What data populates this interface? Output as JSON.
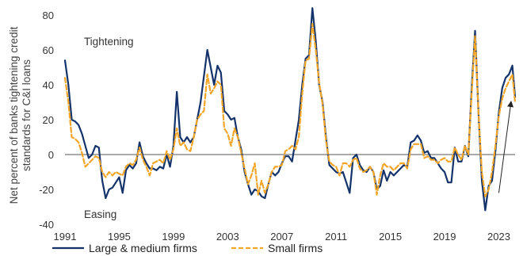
{
  "chart_data": {
    "type": "line",
    "title": "",
    "xlabel": "",
    "ylabel": "Net percent of banks tightening credit standards for C&I loans",
    "ylabel_lines": [
      "Net percent of banks tightening credit",
      "standards for C&I loans"
    ],
    "xlim": [
      1991,
      2024.2
    ],
    "ylim": [
      -40,
      85
    ],
    "x_ticks": [
      1991,
      1995,
      1999,
      2003,
      2007,
      2011,
      2015,
      2019,
      2023
    ],
    "y_ticks": [
      -40,
      -20,
      0,
      20,
      40,
      60,
      80
    ],
    "grid": false,
    "zero_line": true,
    "legend_position": "bottom",
    "annotations": [
      {
        "text": "Tightening",
        "x": 1992.4,
        "y": 65
      },
      {
        "text": "Easing",
        "x": 1992.4,
        "y": -34
      },
      {
        "type": "arrow",
        "from": [
          2023.0,
          -22
        ],
        "to": [
          2023.9,
          30
        ]
      }
    ],
    "series": [
      {
        "name": "Large & medium firms",
        "color": "#14336b",
        "style": "solid",
        "points": [
          [
            1991.0,
            54
          ],
          [
            1991.25,
            40
          ],
          [
            1991.5,
            20
          ],
          [
            1991.75,
            19
          ],
          [
            1992.0,
            17
          ],
          [
            1992.25,
            12
          ],
          [
            1992.5,
            5
          ],
          [
            1992.75,
            -2
          ],
          [
            1993.0,
            0
          ],
          [
            1993.25,
            5
          ],
          [
            1993.5,
            4
          ],
          [
            1993.75,
            -15
          ],
          [
            1994.0,
            -25
          ],
          [
            1994.25,
            -20
          ],
          [
            1994.5,
            -19
          ],
          [
            1994.75,
            -16
          ],
          [
            1995.0,
            -13
          ],
          [
            1995.25,
            -22
          ],
          [
            1995.5,
            -9
          ],
          [
            1995.75,
            -6
          ],
          [
            1996.0,
            -8
          ],
          [
            1996.25,
            -5
          ],
          [
            1996.5,
            7
          ],
          [
            1996.75,
            -1
          ],
          [
            1997.0,
            -5
          ],
          [
            1997.25,
            -8
          ],
          [
            1997.5,
            -8
          ],
          [
            1997.75,
            -9
          ],
          [
            1998.0,
            -7
          ],
          [
            1998.25,
            -8
          ],
          [
            1998.5,
            0
          ],
          [
            1998.75,
            -7
          ],
          [
            1999.0,
            5
          ],
          [
            1999.25,
            36
          ],
          [
            1999.5,
            10
          ],
          [
            1999.75,
            7
          ],
          [
            2000.0,
            10
          ],
          [
            2000.25,
            7
          ],
          [
            2000.5,
            10
          ],
          [
            2000.75,
            20
          ],
          [
            2001.0,
            30
          ],
          [
            2001.25,
            45
          ],
          [
            2001.5,
            60
          ],
          [
            2001.75,
            50
          ],
          [
            2002.0,
            40
          ],
          [
            2002.25,
            51
          ],
          [
            2002.5,
            47
          ],
          [
            2002.75,
            25
          ],
          [
            2003.0,
            23
          ],
          [
            2003.25,
            20
          ],
          [
            2003.5,
            21
          ],
          [
            2003.75,
            10
          ],
          [
            2004.0,
            3
          ],
          [
            2004.25,
            -10
          ],
          [
            2004.5,
            -17
          ],
          [
            2004.75,
            -23
          ],
          [
            2005.0,
            -20
          ],
          [
            2005.25,
            -21
          ],
          [
            2005.5,
            -24
          ],
          [
            2005.75,
            -25
          ],
          [
            2006.0,
            -17
          ],
          [
            2006.25,
            -10
          ],
          [
            2006.5,
            -12
          ],
          [
            2006.75,
            -10
          ],
          [
            2007.0,
            -5
          ],
          [
            2007.25,
            -1
          ],
          [
            2007.5,
            -1
          ],
          [
            2007.75,
            -4
          ],
          [
            2008.0,
            8
          ],
          [
            2008.25,
            20
          ],
          [
            2008.5,
            40
          ],
          [
            2008.75,
            55
          ],
          [
            2009.0,
            57
          ],
          [
            2009.25,
            84
          ],
          [
            2009.5,
            65
          ],
          [
            2009.75,
            40
          ],
          [
            2010.0,
            30
          ],
          [
            2010.25,
            10
          ],
          [
            2010.5,
            -6
          ],
          [
            2010.75,
            -8
          ],
          [
            2011.0,
            -10
          ],
          [
            2011.25,
            -11
          ],
          [
            2011.5,
            -10
          ],
          [
            2011.75,
            -16
          ],
          [
            2012.0,
            -22
          ],
          [
            2012.25,
            -2
          ],
          [
            2012.5,
            0
          ],
          [
            2012.75,
            -6
          ],
          [
            2013.0,
            -9
          ],
          [
            2013.25,
            -10
          ],
          [
            2013.5,
            -7
          ],
          [
            2013.75,
            -10
          ],
          [
            2014.0,
            -20
          ],
          [
            2014.25,
            -18
          ],
          [
            2014.5,
            -9
          ],
          [
            2014.75,
            -15
          ],
          [
            2015.0,
            -10
          ],
          [
            2015.25,
            -12
          ],
          [
            2015.5,
            -10
          ],
          [
            2015.75,
            -8
          ],
          [
            2016.0,
            -6
          ],
          [
            2016.25,
            -7
          ],
          [
            2016.5,
            7
          ],
          [
            2016.75,
            8
          ],
          [
            2017.0,
            11
          ],
          [
            2017.25,
            8
          ],
          [
            2017.5,
            1
          ],
          [
            2017.75,
            2
          ],
          [
            2018.0,
            -2
          ],
          [
            2018.25,
            -2
          ],
          [
            2018.5,
            -5
          ],
          [
            2018.75,
            -8
          ],
          [
            2019.0,
            -10
          ],
          [
            2019.25,
            -16
          ],
          [
            2019.5,
            -16
          ],
          [
            2019.75,
            4
          ],
          [
            2020.0,
            -4
          ],
          [
            2020.25,
            -4
          ],
          [
            2020.5,
            5
          ],
          [
            2020.75,
            -1
          ],
          [
            2021.0,
            38
          ],
          [
            2021.25,
            71
          ],
          [
            2021.5,
            24
          ],
          [
            2021.75,
            -15
          ],
          [
            2022.0,
            -32
          ],
          [
            2022.25,
            -18
          ],
          [
            2022.5,
            -15
          ],
          [
            2022.75,
            2
          ],
          [
            2023.0,
            24
          ],
          [
            2023.25,
            38
          ],
          [
            2023.5,
            44
          ],
          [
            2023.75,
            46
          ],
          [
            2024.0,
            51
          ],
          [
            2024.2,
            33
          ]
        ]
      },
      {
        "name": "Small firms",
        "color": "#f2a526",
        "style": "dashed",
        "points": [
          [
            1991.0,
            44
          ],
          [
            1991.25,
            30
          ],
          [
            1991.5,
            10
          ],
          [
            1991.75,
            9
          ],
          [
            1992.0,
            7
          ],
          [
            1992.25,
            1
          ],
          [
            1992.5,
            -7
          ],
          [
            1992.75,
            -5
          ],
          [
            1993.0,
            -3
          ],
          [
            1993.25,
            -1
          ],
          [
            1993.5,
            -2
          ],
          [
            1993.75,
            -10
          ],
          [
            1994.0,
            -13
          ],
          [
            1994.25,
            -10
          ],
          [
            1994.5,
            -12
          ],
          [
            1994.75,
            -10
          ],
          [
            1995.0,
            -11
          ],
          [
            1995.25,
            -12
          ],
          [
            1995.5,
            -7
          ],
          [
            1995.75,
            -5
          ],
          [
            1996.0,
            -6
          ],
          [
            1996.25,
            -3
          ],
          [
            1996.5,
            4
          ],
          [
            1996.75,
            -3
          ],
          [
            1997.0,
            -7
          ],
          [
            1997.25,
            -12
          ],
          [
            1997.5,
            -5
          ],
          [
            1997.75,
            -4
          ],
          [
            1998.0,
            -3
          ],
          [
            1998.25,
            -5
          ],
          [
            1998.5,
            2
          ],
          [
            1998.75,
            -3
          ],
          [
            1999.0,
            3
          ],
          [
            1999.25,
            15
          ],
          [
            1999.5,
            5
          ],
          [
            1999.75,
            7
          ],
          [
            2000.0,
            3
          ],
          [
            2000.25,
            2
          ],
          [
            2000.5,
            10
          ],
          [
            2000.75,
            20
          ],
          [
            2001.0,
            23
          ],
          [
            2001.25,
            25
          ],
          [
            2001.5,
            46
          ],
          [
            2001.75,
            35
          ],
          [
            2002.0,
            38
          ],
          [
            2002.25,
            42
          ],
          [
            2002.5,
            40
          ],
          [
            2002.75,
            15
          ],
          [
            2003.0,
            12
          ],
          [
            2003.25,
            5
          ],
          [
            2003.5,
            15
          ],
          [
            2003.75,
            10
          ],
          [
            2004.0,
            1
          ],
          [
            2004.25,
            -8
          ],
          [
            2004.5,
            -17
          ],
          [
            2004.75,
            -12
          ],
          [
            2005.0,
            -5
          ],
          [
            2005.25,
            -23
          ],
          [
            2005.5,
            -15
          ],
          [
            2005.75,
            -22
          ],
          [
            2006.0,
            -17
          ],
          [
            2006.25,
            -10
          ],
          [
            2006.5,
            -7
          ],
          [
            2006.75,
            -7
          ],
          [
            2007.0,
            -6
          ],
          [
            2007.25,
            2
          ],
          [
            2007.5,
            3
          ],
          [
            2007.75,
            5
          ],
          [
            2008.0,
            3
          ],
          [
            2008.25,
            10
          ],
          [
            2008.5,
            35
          ],
          [
            2008.75,
            54
          ],
          [
            2009.0,
            55
          ],
          [
            2009.25,
            75
          ],
          [
            2009.5,
            60
          ],
          [
            2009.75,
            41
          ],
          [
            2010.0,
            29
          ],
          [
            2010.25,
            8
          ],
          [
            2010.5,
            -4
          ],
          [
            2010.75,
            -6
          ],
          [
            2011.0,
            -7
          ],
          [
            2011.25,
            -12
          ],
          [
            2011.5,
            -5
          ],
          [
            2011.75,
            -5
          ],
          [
            2012.0,
            -7
          ],
          [
            2012.25,
            -3
          ],
          [
            2012.5,
            -2
          ],
          [
            2012.75,
            -8
          ],
          [
            2013.0,
            -10
          ],
          [
            2013.25,
            -9
          ],
          [
            2013.5,
            -7
          ],
          [
            2013.75,
            -10
          ],
          [
            2014.0,
            -23
          ],
          [
            2014.25,
            -12
          ],
          [
            2014.5,
            -5
          ],
          [
            2014.75,
            -7
          ],
          [
            2015.0,
            -7
          ],
          [
            2015.25,
            -9
          ],
          [
            2015.5,
            -7
          ],
          [
            2015.75,
            -5
          ],
          [
            2016.0,
            -5
          ],
          [
            2016.25,
            -8
          ],
          [
            2016.5,
            3
          ],
          [
            2016.75,
            6
          ],
          [
            2017.0,
            6
          ],
          [
            2017.25,
            6
          ],
          [
            2017.5,
            -2
          ],
          [
            2017.75,
            -1
          ],
          [
            2018.0,
            -3
          ],
          [
            2018.25,
            -3
          ],
          [
            2018.5,
            -5
          ],
          [
            2018.75,
            -3
          ],
          [
            2019.0,
            -2
          ],
          [
            2019.25,
            -4
          ],
          [
            2019.5,
            -4
          ],
          [
            2019.75,
            4
          ],
          [
            2020.0,
            0
          ],
          [
            2020.25,
            -3
          ],
          [
            2020.5,
            5
          ],
          [
            2020.75,
            0
          ],
          [
            2021.0,
            35
          ],
          [
            2021.25,
            68
          ],
          [
            2021.5,
            24
          ],
          [
            2021.75,
            -10
          ],
          [
            2022.0,
            -24
          ],
          [
            2022.25,
            -20
          ],
          [
            2022.5,
            -10
          ],
          [
            2022.75,
            5
          ],
          [
            2023.0,
            22
          ],
          [
            2023.25,
            32
          ],
          [
            2023.5,
            38
          ],
          [
            2023.75,
            42
          ],
          [
            2024.0,
            46
          ],
          [
            2024.2,
            30
          ]
        ]
      }
    ]
  }
}
